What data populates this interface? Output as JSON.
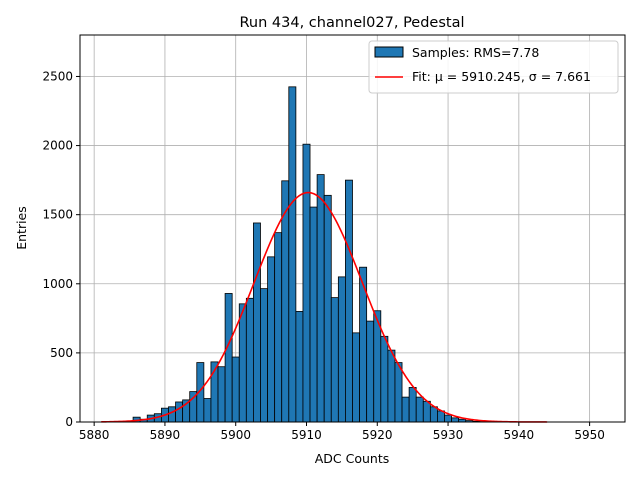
{
  "chart_data": {
    "type": "bar",
    "title": "Run 434, channel027, Pedestal",
    "xlabel": "ADC Counts",
    "ylabel": "Entries",
    "xlim": [
      5878,
      5955
    ],
    "ylim": [
      0,
      2800
    ],
    "xticks": [
      5880,
      5890,
      5900,
      5910,
      5920,
      5930,
      5940,
      5950
    ],
    "yticks": [
      0,
      500,
      1000,
      1500,
      2000,
      2500
    ],
    "grid": true,
    "legend_position": "top-right",
    "bin_width": 1,
    "series": [
      {
        "name": "Samples: RMS=7.78",
        "kind": "histogram",
        "color": "#1f77b4",
        "edgecolor": "#000000",
        "bins": [
          5886,
          5887,
          5888,
          5889,
          5890,
          5891,
          5892,
          5893,
          5894,
          5895,
          5896,
          5897,
          5898,
          5899,
          5900,
          5901,
          5902,
          5903,
          5904,
          5905,
          5906,
          5907,
          5908,
          5909,
          5910,
          5911,
          5912,
          5913,
          5914,
          5915,
          5916,
          5917,
          5918,
          5919,
          5920,
          5921,
          5922,
          5923,
          5924,
          5925,
          5926,
          5927,
          5928,
          5929,
          5930,
          5931,
          5932,
          5933,
          5934,
          5935
        ],
        "values": [
          35,
          20,
          50,
          60,
          100,
          110,
          145,
          160,
          220,
          430,
          170,
          435,
          400,
          930,
          470,
          855,
          895,
          1440,
          965,
          1195,
          1370,
          1745,
          2425,
          800,
          2010,
          1555,
          1790,
          1640,
          900,
          1050,
          1750,
          645,
          1120,
          730,
          805,
          620,
          520,
          430,
          180,
          250,
          180,
          150,
          110,
          80,
          50,
          30,
          20,
          10,
          5,
          3
        ]
      },
      {
        "name": "Fit: μ = 5910.245, σ = 7.661",
        "kind": "gaussian_fit",
        "color": "#ff0000",
        "mu": 5910.245,
        "sigma": 7.661,
        "amplitude": 1660,
        "x_range": [
          5881,
          5944
        ]
      }
    ]
  }
}
